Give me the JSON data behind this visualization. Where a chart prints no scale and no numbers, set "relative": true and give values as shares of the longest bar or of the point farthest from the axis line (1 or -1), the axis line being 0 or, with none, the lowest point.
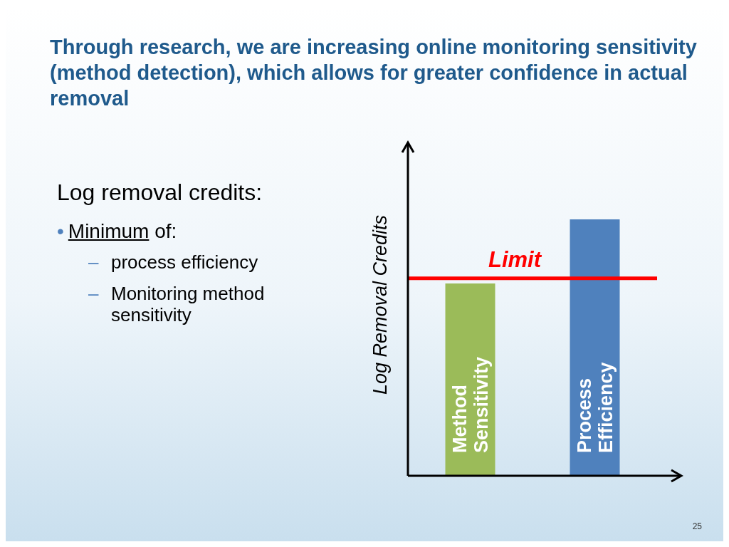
{
  "chart_data": {
    "type": "bar",
    "title": "Through research, we are increasing online monitoring sensitivity (method detection), which allows for greater confidence in actual removal",
    "ylabel": "Log Removal Credits",
    "categories": [
      "Method Sensitivity",
      "Process Efficiency"
    ],
    "values": [
      0.75,
      1
    ],
    "colors": [
      "#9bbb59",
      "#4f81bd"
    ],
    "relative": true,
    "grid": false,
    "legend": false,
    "ref_lines": [
      {
        "axis": "y",
        "value": 0.77,
        "label": "Limit",
        "color": "#ff0000"
      }
    ],
    "annotations": [
      "Log removal credits:",
      "• Minimum of:",
      "– process efficiency",
      "– Monitoring method sensitivity",
      "25"
    ]
  }
}
